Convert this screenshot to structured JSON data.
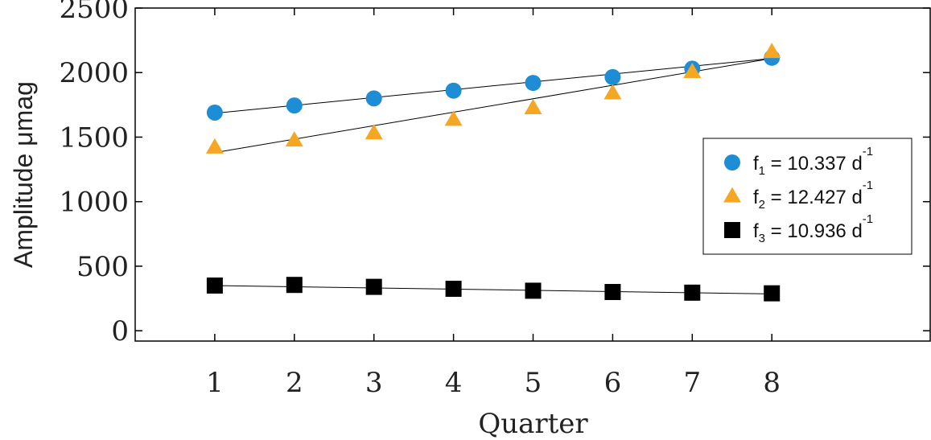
{
  "chart_data": {
    "type": "scatter",
    "xlabel": "Quarter",
    "ylabel": "Amplitude μmag",
    "xlim": [
      0,
      10
    ],
    "ylim": [
      -80,
      2500
    ],
    "xticks": [
      1,
      2,
      3,
      4,
      5,
      6,
      7,
      8
    ],
    "yticks": [
      0,
      500,
      1000,
      1500,
      2000,
      2500
    ],
    "grid": false,
    "legend_position": "right",
    "series": [
      {
        "name": "f1 = 10.337 d-1",
        "label_main": "f",
        "label_sub": "1",
        "label_rest": " = 10.337 d",
        "label_sup": "-1",
        "marker": "circle",
        "color": "#1f8dd6",
        "x": [
          1,
          2,
          3,
          4,
          5,
          6,
          7,
          8
        ],
        "y": [
          1690,
          1745,
          1800,
          1860,
          1920,
          1965,
          2030,
          2115
        ],
        "fit": [
          [
            1,
            1685
          ],
          [
            8,
            2110
          ]
        ]
      },
      {
        "name": "f2 = 12.427 d-1",
        "label_main": "f",
        "label_sub": "2",
        "label_rest": " = 12.427 d",
        "label_sup": "-1",
        "marker": "triangle",
        "color": "#f5a623",
        "x": [
          1,
          2,
          3,
          4,
          5,
          6,
          7,
          8
        ],
        "y": [
          1420,
          1475,
          1530,
          1635,
          1725,
          1840,
          2005,
          2160
        ],
        "fit": [
          [
            1,
            1380
          ],
          [
            8,
            2110
          ]
        ]
      },
      {
        "name": "f3 = 10.936 d-1",
        "label_main": "f",
        "label_sub": "3",
        "label_rest": " = 10.936 d",
        "label_sup": "-1",
        "marker": "square",
        "color": "#000000",
        "x": [
          1,
          2,
          3,
          4,
          5,
          6,
          7,
          8
        ],
        "y": [
          350,
          355,
          340,
          325,
          310,
          300,
          295,
          290
        ],
        "fit": [
          [
            1,
            350
          ],
          [
            8,
            285
          ]
        ]
      }
    ]
  }
}
